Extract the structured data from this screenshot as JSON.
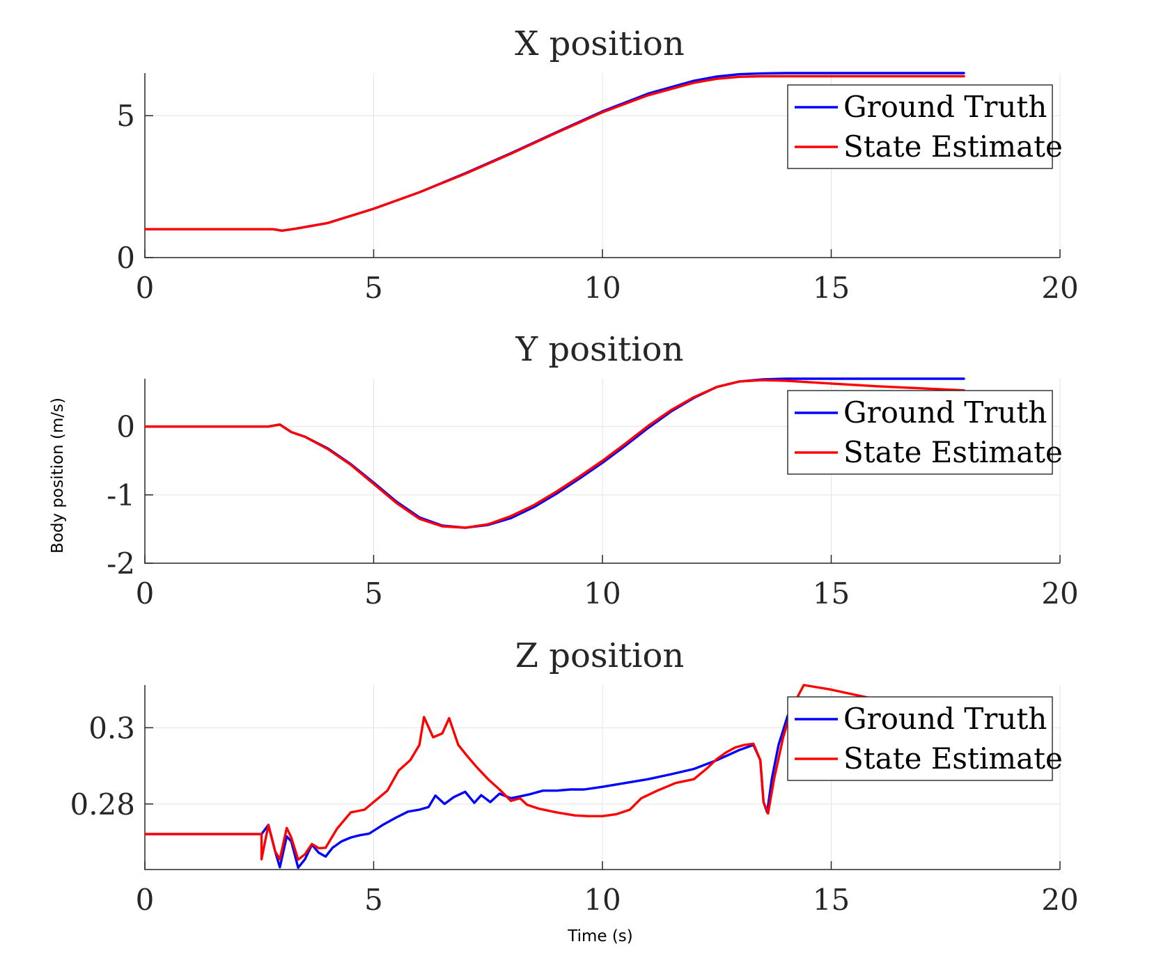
{
  "figure": {
    "ylabel": "Body position (m/s)",
    "xlabel": "Time (s)"
  },
  "colors": {
    "ground_truth": "#0000ff",
    "state_estimate": "#ff0000"
  },
  "chart_data": [
    {
      "type": "line",
      "title": "X position",
      "xlim": [
        0,
        20
      ],
      "ylim": [
        0,
        6.5
      ],
      "xticks": [
        0,
        5,
        10,
        15,
        20
      ],
      "yticks": [
        0,
        5
      ],
      "grid": true,
      "legend_placement": "top-right",
      "series": [
        {
          "name": "Ground Truth",
          "color": "#0000ff",
          "x": [
            0,
            2.8,
            3.0,
            3.3,
            4,
            5,
            6,
            7,
            8,
            9,
            10,
            11,
            12,
            12.5,
            13,
            13.5,
            14,
            17.9
          ],
          "y": [
            1.0,
            1.0,
            0.95,
            1.02,
            1.22,
            1.72,
            2.3,
            2.97,
            3.68,
            4.42,
            5.15,
            5.78,
            6.23,
            6.38,
            6.46,
            6.49,
            6.5,
            6.5
          ]
        },
        {
          "name": "State Estimate",
          "color": "#ff0000",
          "x": [
            0,
            2.8,
            3.0,
            3.3,
            4,
            5,
            6,
            7,
            8,
            9,
            10,
            11,
            12,
            12.5,
            13,
            13.5,
            14,
            17.9
          ],
          "y": [
            1.0,
            1.0,
            0.95,
            1.02,
            1.22,
            1.72,
            2.3,
            2.95,
            3.66,
            4.4,
            5.12,
            5.72,
            6.16,
            6.3,
            6.37,
            6.39,
            6.39,
            6.39
          ]
        }
      ]
    },
    {
      "type": "line",
      "title": "Y position",
      "xlim": [
        0,
        20
      ],
      "ylim": [
        -2,
        0.7
      ],
      "xticks": [
        0,
        5,
        10,
        15,
        20
      ],
      "yticks": [
        -2,
        -1,
        0
      ],
      "grid": true,
      "legend_placement": "top-right",
      "series": [
        {
          "name": "Ground Truth",
          "color": "#0000ff",
          "x": [
            0,
            2.7,
            2.95,
            3.2,
            3.5,
            4,
            4.5,
            5,
            5.5,
            6,
            6.5,
            7,
            7.5,
            8,
            8.5,
            9,
            9.5,
            10,
            10.5,
            11,
            11.5,
            12,
            12.5,
            13,
            13.5,
            14,
            17.9
          ],
          "y": [
            0,
            0,
            0.03,
            -0.08,
            -0.15,
            -0.32,
            -0.55,
            -0.82,
            -1.1,
            -1.33,
            -1.45,
            -1.48,
            -1.44,
            -1.34,
            -1.18,
            -0.98,
            -0.76,
            -0.53,
            -0.28,
            -0.02,
            0.22,
            0.42,
            0.58,
            0.66,
            0.69,
            0.7,
            0.7
          ]
        },
        {
          "name": "State Estimate",
          "color": "#ff0000",
          "x": [
            0,
            2.7,
            2.95,
            3.2,
            3.5,
            4,
            4.5,
            5,
            5.5,
            6,
            6.5,
            7,
            7.5,
            8,
            8.5,
            9,
            9.5,
            10,
            10.5,
            11,
            11.5,
            12,
            12.5,
            13,
            13.5,
            14,
            15,
            16,
            17.9
          ],
          "y": [
            0,
            0,
            0.03,
            -0.08,
            -0.15,
            -0.33,
            -0.56,
            -0.84,
            -1.12,
            -1.35,
            -1.46,
            -1.48,
            -1.43,
            -1.31,
            -1.15,
            -0.95,
            -0.73,
            -0.5,
            -0.25,
            0.01,
            0.24,
            0.43,
            0.58,
            0.66,
            0.68,
            0.67,
            0.63,
            0.59,
            0.53
          ]
        }
      ]
    },
    {
      "type": "line",
      "title": "Z position",
      "xlim": [
        0,
        20
      ],
      "ylim": [
        0.2628,
        0.3112
      ],
      "xticks": [
        0,
        5,
        10,
        15,
        20
      ],
      "yticks": [
        0.28,
        0.3
      ],
      "ytick_labels": [
        "0.28",
        "0.3"
      ],
      "grid": true,
      "legend_placement": "top-right",
      "series": [
        {
          "name": "Ground Truth",
          "color": "#0000ff",
          "x": [
            0,
            2.55,
            2.7,
            2.85,
            2.95,
            3.1,
            3.2,
            3.35,
            3.5,
            3.65,
            3.8,
            3.95,
            4.1,
            4.3,
            4.5,
            4.7,
            4.9,
            5.2,
            5.5,
            5.75,
            6,
            6.2,
            6.35,
            6.55,
            6.75,
            7,
            7.2,
            7.35,
            7.55,
            7.75,
            8,
            8.2,
            8.4,
            8.7,
            9,
            9.3,
            9.6,
            10,
            10.5,
            11,
            11.5,
            12,
            12.5,
            13,
            13.3,
            13.45,
            13.52,
            13.6,
            13.7,
            13.85,
            14.05
          ],
          "y": [
            0.2721,
            0.2721,
            0.2745,
            0.2675,
            0.2634,
            0.2715,
            0.2702,
            0.2633,
            0.2655,
            0.2693,
            0.2672,
            0.2662,
            0.2685,
            0.2702,
            0.2712,
            0.2718,
            0.2722,
            0.2745,
            0.2765,
            0.278,
            0.2785,
            0.2792,
            0.2822,
            0.28,
            0.2818,
            0.2832,
            0.2803,
            0.2823,
            0.2805,
            0.2827,
            0.2815,
            0.282,
            0.2825,
            0.2835,
            0.2835,
            0.2838,
            0.2838,
            0.2845,
            0.2855,
            0.2865,
            0.2878,
            0.2892,
            0.2915,
            0.2942,
            0.2955,
            0.2915,
            0.2805,
            0.2778,
            0.2865,
            0.2955,
            0.3032
          ]
        },
        {
          "name": "State Estimate",
          "color": "#ff0000",
          "x": [
            0,
            2.55,
            2.55,
            2.7,
            2.85,
            2.95,
            3.1,
            3.2,
            3.35,
            3.5,
            3.65,
            3.8,
            3.95,
            4.2,
            4.5,
            4.8,
            5,
            5.3,
            5.55,
            5.8,
            6,
            6.1,
            6.3,
            6.5,
            6.65,
            6.85,
            7.05,
            7.25,
            7.5,
            7.75,
            8,
            8.2,
            8.35,
            8.6,
            9,
            9.4,
            9.7,
            10,
            10.3,
            10.6,
            10.85,
            11.2,
            11.6,
            12,
            12.3,
            12.5,
            12.7,
            12.9,
            13.1,
            13.3,
            13.45,
            13.52,
            13.62,
            13.75,
            13.95,
            14.15,
            14.4,
            15,
            16
          ],
          "y": [
            0.2721,
            0.2721,
            0.2655,
            0.2745,
            0.2675,
            0.2655,
            0.2737,
            0.2712,
            0.2654,
            0.2668,
            0.2695,
            0.2684,
            0.2685,
            0.2735,
            0.2778,
            0.2785,
            0.2805,
            0.2835,
            0.2888,
            0.2915,
            0.2955,
            0.3028,
            0.2975,
            0.2985,
            0.3025,
            0.2955,
            0.2925,
            0.2897,
            0.2865,
            0.2838,
            0.2808,
            0.2815,
            0.2798,
            0.2788,
            0.2778,
            0.277,
            0.2768,
            0.2768,
            0.2773,
            0.2785,
            0.2815,
            0.2835,
            0.2855,
            0.2865,
            0.2895,
            0.2918,
            0.2935,
            0.2948,
            0.2955,
            0.2958,
            0.2915,
            0.2805,
            0.2775,
            0.2865,
            0.2975,
            0.3055,
            0.3112,
            0.31,
            0.3074
          ]
        }
      ]
    }
  ]
}
